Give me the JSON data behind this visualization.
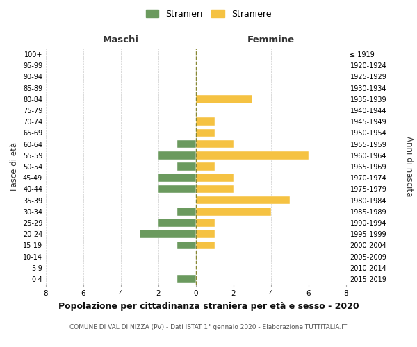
{
  "age_groups": [
    "100+",
    "95-99",
    "90-94",
    "85-89",
    "80-84",
    "75-79",
    "70-74",
    "65-69",
    "60-64",
    "55-59",
    "50-54",
    "45-49",
    "40-44",
    "35-39",
    "30-34",
    "25-29",
    "20-24",
    "15-19",
    "10-14",
    "5-9",
    "0-4"
  ],
  "birth_years": [
    "≤ 1919",
    "1920-1924",
    "1925-1929",
    "1930-1934",
    "1935-1939",
    "1940-1944",
    "1945-1949",
    "1950-1954",
    "1955-1959",
    "1960-1964",
    "1965-1969",
    "1970-1974",
    "1975-1979",
    "1980-1984",
    "1985-1989",
    "1990-1994",
    "1995-1999",
    "2000-2004",
    "2005-2009",
    "2010-2014",
    "2015-2019"
  ],
  "maschi": [
    0,
    0,
    0,
    0,
    0,
    0,
    0,
    0,
    1,
    2,
    1,
    2,
    2,
    0,
    1,
    2,
    3,
    1,
    0,
    0,
    1
  ],
  "femmine": [
    0,
    0,
    0,
    0,
    3,
    0,
    1,
    1,
    2,
    6,
    1,
    2,
    2,
    5,
    4,
    1,
    1,
    1,
    0,
    0,
    0
  ],
  "maschi_color": "#6b9a5e",
  "femmine_color": "#f5c242",
  "grid_color": "#cccccc",
  "vline_color": "#888833",
  "title": "Popolazione per cittadinanza straniera per età e sesso - 2020",
  "subtitle": "COMUNE DI VAL DI NIZZA (PV) - Dati ISTAT 1° gennaio 2020 - Elaborazione TUTTITALIA.IT",
  "xlabel_left": "Maschi",
  "xlabel_right": "Femmine",
  "ylabel_left": "Fasce di età",
  "ylabel_right": "Anni di nascita",
  "legend_stranieri": "Stranieri",
  "legend_straniere": "Straniere",
  "xlim": 8,
  "bar_height": 0.72
}
